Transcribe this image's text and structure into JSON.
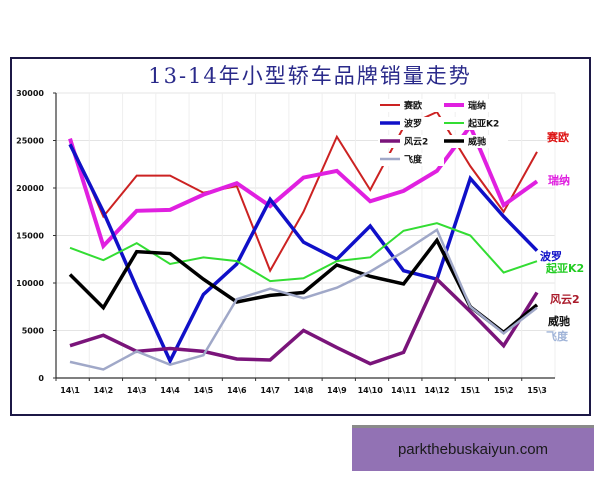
{
  "chart_data": {
    "type": "line",
    "title": "13-14年小型轿车品牌销量走势",
    "xlabel": "",
    "ylabel": "",
    "ylim": [
      0,
      30000
    ],
    "yticks": [
      0,
      5000,
      10000,
      15000,
      20000,
      25000,
      30000
    ],
    "grid": true,
    "legend_position": "upper right (inside plot)",
    "categories": [
      "14\\1",
      "14\\2",
      "14\\3",
      "14\\4",
      "14\\5",
      "14\\6",
      "14\\7",
      "14\\8",
      "14\\9",
      "14\\10",
      "14\\11",
      "14\\12",
      "15\\1",
      "15\\2",
      "15\\3"
    ],
    "series": [
      {
        "name": "赛欧",
        "color": "#cc2222",
        "width": 2,
        "values": [
          25000,
          17000,
          21300,
          21300,
          19500,
          20200,
          11300,
          17500,
          25400,
          19800,
          26400,
          28000,
          22300,
          17500,
          23800
        ],
        "end_label": "赛欧"
      },
      {
        "name": "瑞纳",
        "color": "#e020e0",
        "width": 4,
        "values": [
          25200,
          13900,
          17600,
          17700,
          19300,
          20500,
          18100,
          21100,
          21800,
          18600,
          19700,
          21800,
          26500,
          18200,
          20700
        ],
        "end_label": "瑞纳"
      },
      {
        "name": "波罗",
        "color": "#1010c8",
        "width": 3.5,
        "values": [
          24600,
          17500,
          9500,
          1800,
          8800,
          12000,
          18800,
          14300,
          12500,
          16000,
          11300,
          10400,
          21000,
          17000,
          13400
        ],
        "end_label": "波罗"
      },
      {
        "name": "起亚K2",
        "color": "#33dd33",
        "width": 2,
        "values": [
          13700,
          12400,
          14200,
          12000,
          12700,
          12300,
          10200,
          10500,
          12300,
          12700,
          15500,
          16300,
          15000,
          11100,
          12300
        ],
        "end_label": "起亚K2"
      },
      {
        "name": "风云2",
        "color": "#7a147a",
        "width": 3.5,
        "values": [
          3400,
          4500,
          2800,
          3100,
          2800,
          2000,
          1900,
          5000,
          3200,
          1500,
          2700,
          10400,
          7000,
          3400,
          9000
        ],
        "end_label": "风云2"
      },
      {
        "name": "威驰",
        "color": "#000000",
        "width": 3.5,
        "values": [
          10900,
          7400,
          13300,
          13100,
          10400,
          8000,
          8700,
          9000,
          11900,
          10700,
          9900,
          14500,
          7500,
          4800,
          7700
        ],
        "end_label": "威驰"
      },
      {
        "name": "飞度",
        "color": "#a0a8c8",
        "width": 2.5,
        "values": [
          1700,
          900,
          2800,
          1400,
          2400,
          8300,
          9400,
          8400,
          9500,
          11200,
          13300,
          15600,
          7500,
          4700,
          7400
        ],
        "end_label": "飞度"
      }
    ],
    "end_label_colors": {
      "赛欧": "#dd1111",
      "瑞纳": "#e020e0",
      "波罗": "#1010c8",
      "起亚K2": "#22cc22",
      "风云2": "#aa1a2a",
      "威驰": "#111111",
      "飞度": "#a0b4d8"
    }
  },
  "watermark": {
    "text": "parkthebuskaiyun.com"
  }
}
